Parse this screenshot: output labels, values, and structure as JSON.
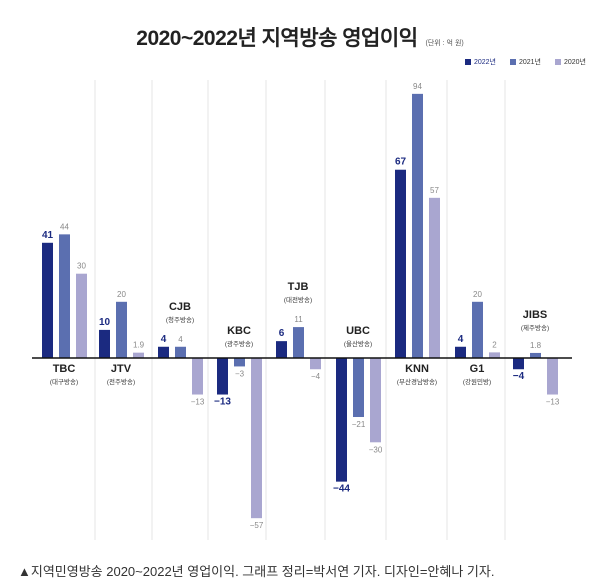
{
  "chart_data": {
    "type": "bar",
    "title": "2020~2022년 지역방송 영업이익",
    "unit": "(단위 : 억 원)",
    "legend_position": "top-right",
    "grid": false,
    "categories": [
      "TBC",
      "JTV",
      "CJB",
      "KBC",
      "TJB",
      "UBC",
      "KNN",
      "G1",
      "JIBS"
    ],
    "category_sublabels": [
      "(대구방송)",
      "(전주방송)",
      "(청주방송)",
      "(광주방송)",
      "(대전방송)",
      "(울산방송)",
      "(부산경남방송)",
      "(강원민방)",
      "(제주방송)"
    ],
    "series": [
      {
        "name": "2022년",
        "color": "#1b2a80",
        "values": [
          41,
          10,
          4,
          -13,
          6,
          -44,
          67,
          4,
          -4
        ]
      },
      {
        "name": "2021년",
        "color": "#5b6fb0",
        "values": [
          44,
          20,
          4,
          -3,
          11,
          -21,
          94,
          20,
          1.8
        ]
      },
      {
        "name": "2020년",
        "color": "#a9a6d0",
        "values": [
          30,
          1.9,
          -13,
          -57,
          -4,
          -30,
          57,
          2,
          -13
        ]
      }
    ]
  },
  "caption": "▲지역민영방송 2020~2022년 영업이익. 그래프 정리=박서연 기자. 디자인=안혜나 기자."
}
